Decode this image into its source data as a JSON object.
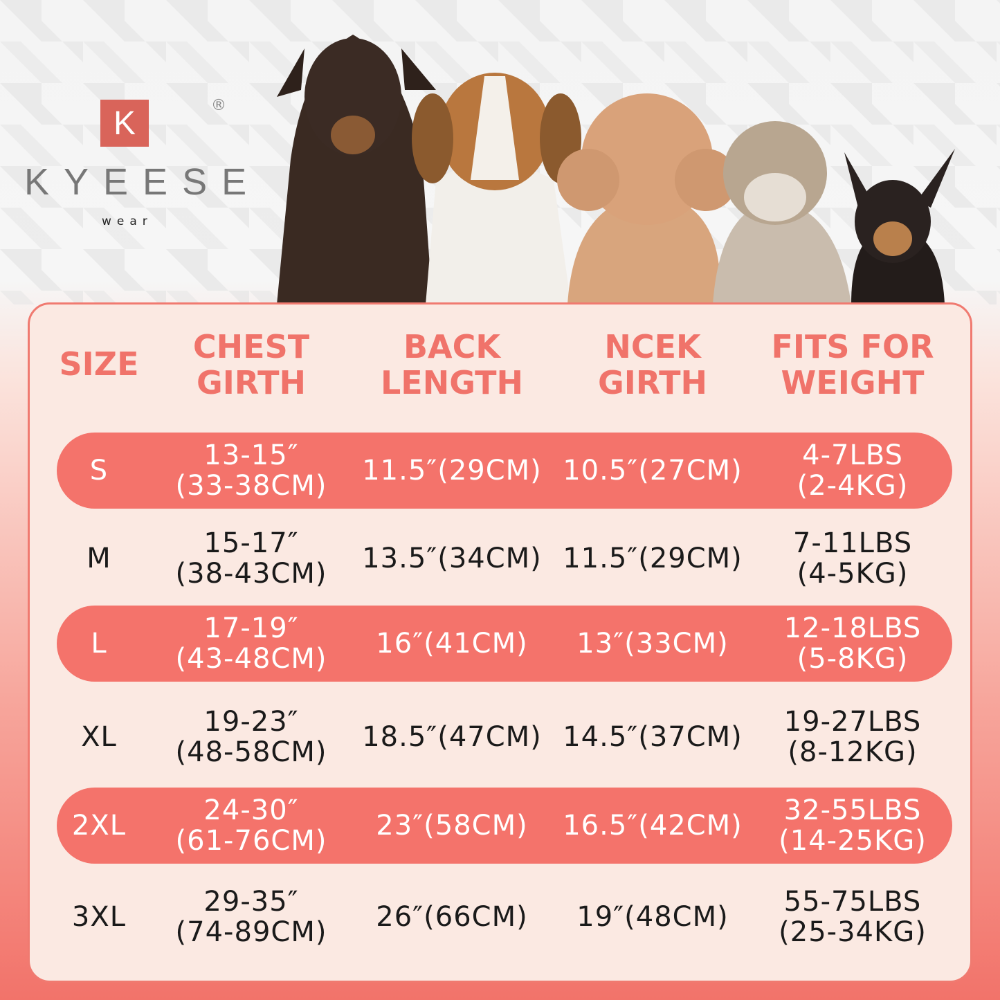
{
  "brand": {
    "mark": "K",
    "name": "KYEESE",
    "tagline": "wear",
    "registered": "®"
  },
  "colors": {
    "accent": "#f4736b",
    "panel": "#fbe9e2",
    "header_text": "#f0736a"
  },
  "table": {
    "headers": [
      "SIZE",
      "CHEST\nGIRTH",
      "BACK\nLENGTH",
      "NCEK\nGIRTH",
      "FITS FOR\nWEIGHT"
    ],
    "rows": [
      {
        "size": "S",
        "chest": "13-15″\n(33-38CM)",
        "back": "11.5″(29CM)",
        "neck": "10.5″(27CM)",
        "weight": "4-7LBS\n(2-4KG)",
        "highlighted": true
      },
      {
        "size": "M",
        "chest": "15-17″\n(38-43CM)",
        "back": "13.5″(34CM)",
        "neck": "11.5″(29CM)",
        "weight": "7-11LBS\n(4-5KG)",
        "highlighted": false
      },
      {
        "size": "L",
        "chest": "17-19″\n(43-48CM)",
        "back": "16″(41CM)",
        "neck": "13″(33CM)",
        "weight": "12-18LBS\n(5-8KG)",
        "highlighted": true
      },
      {
        "size": "XL",
        "chest": "19-23″\n(48-58CM)",
        "back": "18.5″(47CM)",
        "neck": "14.5″(37CM)",
        "weight": "19-27LBS\n(8-12KG)",
        "highlighted": false
      },
      {
        "size": "2XL",
        "chest": "24-30″\n(61-76CM)",
        "back": "23″(58CM)",
        "neck": "16.5″(42CM)",
        "weight": "32-55LBS\n(14-25KG)",
        "highlighted": true
      },
      {
        "size": "3XL",
        "chest": "29-35″\n(74-89CM)",
        "back": "26″(66CM)",
        "neck": "19″(48CM)",
        "weight": "55-75LBS\n(25-34KG)",
        "highlighted": false
      }
    ]
  }
}
